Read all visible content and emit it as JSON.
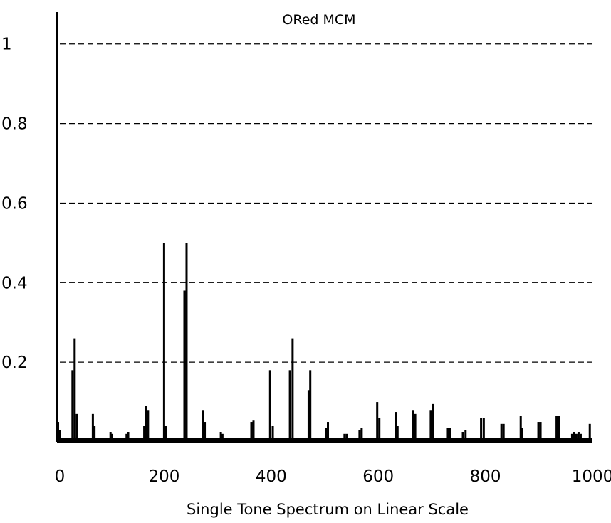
{
  "chart_data": {
    "type": "bar",
    "title": "ORed MCM",
    "xlabel": "Single Tone Spectrum on Linear Scale",
    "ylabel": "",
    "xlim": [
      0,
      1000
    ],
    "ylim": [
      0,
      1.08
    ],
    "xticks": [
      0,
      200,
      400,
      600,
      800,
      1000
    ],
    "xtick_labels": [
      "0",
      "200",
      "400",
      "600",
      "800",
      "1000"
    ],
    "yticks": [
      0.2,
      0.4,
      0.6,
      0.8,
      1
    ],
    "ytick_labels": [
      "0.2",
      "0.4",
      "0.6",
      "0.8",
      "1"
    ],
    "grid": "horizontal dashed",
    "series": [
      {
        "x": [
          2,
          5,
          29,
          33,
          37,
          67,
          70,
          100,
          103,
          130,
          133,
          163,
          166,
          170,
          200,
          203,
          238,
          242,
          273,
          276,
          306,
          309,
          363,
          367,
          398,
          403,
          435,
          440,
          470,
          473,
          503,
          506,
          537,
          541,
          565,
          569,
          598,
          602,
          633,
          636,
          665,
          669,
          698,
          702,
          730,
          734,
          758,
          763,
          792,
          797,
          830,
          834,
          866,
          869,
          899,
          903,
          933,
          938,
          962,
          966,
          970,
          974,
          978,
          995
        ],
        "values": [
          0.05,
          0.03,
          0.18,
          0.26,
          0.07,
          0.07,
          0.04,
          0.025,
          0.02,
          0.02,
          0.025,
          0.04,
          0.09,
          0.08,
          0.5,
          0.04,
          0.38,
          0.5,
          0.08,
          0.05,
          0.025,
          0.02,
          0.05,
          0.055,
          0.18,
          0.04,
          0.18,
          0.26,
          0.13,
          0.18,
          0.035,
          0.05,
          0.02,
          0.02,
          0.03,
          0.035,
          0.1,
          0.06,
          0.075,
          0.04,
          0.08,
          0.07,
          0.08,
          0.095,
          0.035,
          0.035,
          0.025,
          0.03,
          0.06,
          0.06,
          0.045,
          0.045,
          0.065,
          0.035,
          0.05,
          0.05,
          0.065,
          0.065,
          0.02,
          0.025,
          0.02,
          0.025,
          0.02,
          0.045
        ]
      }
    ]
  }
}
